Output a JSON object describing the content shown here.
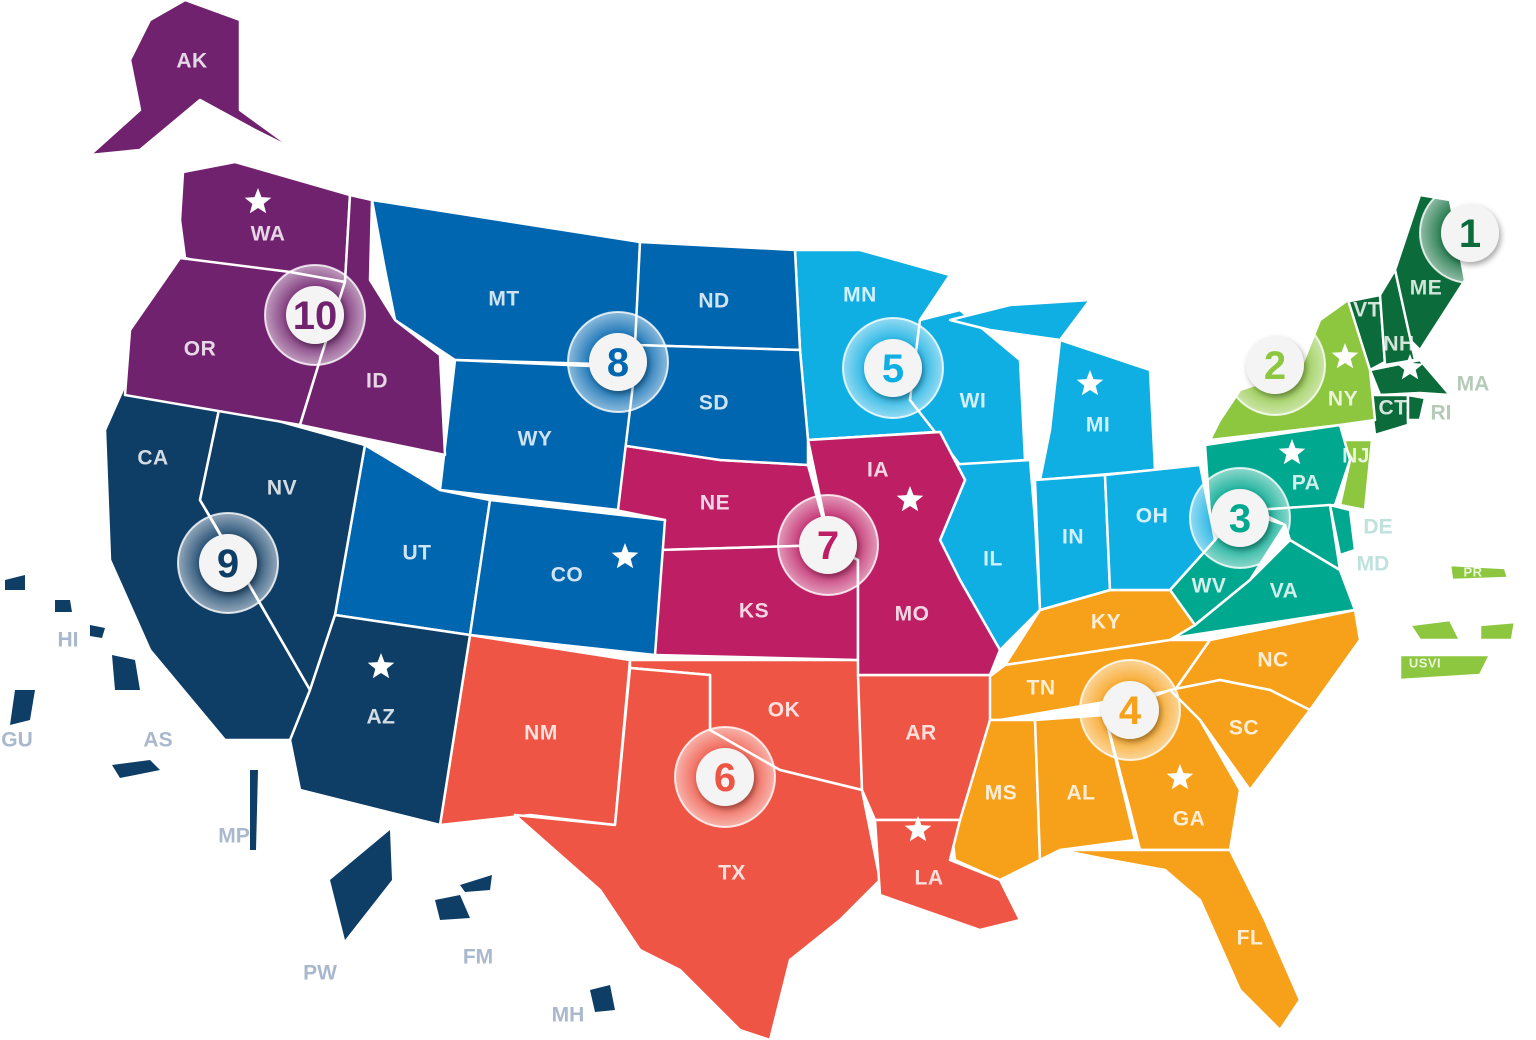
{
  "regions": [
    {
      "number": "1",
      "color": "#0b6b3a",
      "states": [
        "ME",
        "VT",
        "NH",
        "MA",
        "CT",
        "RI"
      ]
    },
    {
      "number": "2",
      "color": "#8dc63f",
      "states": [
        "NY",
        "NJ",
        "PR",
        "USVI"
      ]
    },
    {
      "number": "3",
      "color": "#00a88f",
      "states": [
        "PA",
        "WV",
        "VA",
        "MD",
        "DE"
      ]
    },
    {
      "number": "4",
      "color": "#f7a11a",
      "states": [
        "KY",
        "TN",
        "NC",
        "SC",
        "MS",
        "AL",
        "GA",
        "FL"
      ]
    },
    {
      "number": "5",
      "color": "#0faee3",
      "states": [
        "MN",
        "WI",
        "MI",
        "IL",
        "IN",
        "OH"
      ]
    },
    {
      "number": "6",
      "color": "#ef5545",
      "states": [
        "NM",
        "OK",
        "TX",
        "AR",
        "LA"
      ]
    },
    {
      "number": "7",
      "color": "#be1e64",
      "states": [
        "NE",
        "IA",
        "KS",
        "MO"
      ]
    },
    {
      "number": "8",
      "color": "#0066b0",
      "states": [
        "MT",
        "ND",
        "SD",
        "WY",
        "UT",
        "CO"
      ]
    },
    {
      "number": "9",
      "color": "#0e3d66",
      "states": [
        "CA",
        "NV",
        "AZ",
        "HI",
        "GU",
        "AS",
        "MP",
        "PW",
        "FM",
        "MH"
      ]
    },
    {
      "number": "10",
      "color": "#71226e",
      "states": [
        "WA",
        "OR",
        "ID",
        "AK"
      ]
    }
  ],
  "headquarters_states": [
    "WA",
    "NY",
    "MA",
    "PA",
    "MI",
    "IA",
    "CO",
    "AZ",
    "GA",
    "LA"
  ],
  "outside_labels": {
    "MA": "MA",
    "RI": "RI",
    "DE": "DE",
    "MD": "MD",
    "HI": "HI",
    "GU": "GU",
    "AS": "AS",
    "MP": "MP",
    "PW": "PW",
    "FM": "FM",
    "MH": "MH"
  },
  "territory_labels": {
    "PR": "PR",
    "USVI": "USVI"
  },
  "outside_label_colors": {
    "region1": "#b5cbb8",
    "region3": "#bfe2dc",
    "pacific": "#a9b8cc"
  }
}
